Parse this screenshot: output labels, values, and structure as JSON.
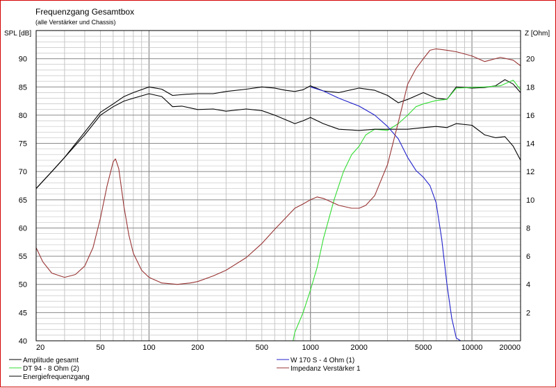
{
  "chart_data": {
    "type": "line",
    "title": "Frequenzgang Gesamtbox",
    "subtitle": "(alle Verstärker und Chassis)",
    "ylabel_left": "SPL [dB]",
    "ylabel_right": "Z [Ohm]",
    "x_scale": "log",
    "xlim": [
      20,
      20000
    ],
    "ylim_left": [
      40,
      95
    ],
    "ylim_right": [
      0,
      22
    ],
    "grid": true,
    "x_ticks": [
      {
        "v": 20,
        "label": "20"
      },
      {
        "v": 50,
        "label": "50"
      },
      {
        "v": 100,
        "label": "100"
      },
      {
        "v": 200,
        "label": "200"
      },
      {
        "v": 500,
        "label": "500"
      },
      {
        "v": 1000,
        "label": "1000"
      },
      {
        "v": 2000,
        "label": "2000"
      },
      {
        "v": 5000,
        "label": "5000"
      },
      {
        "v": 10000,
        "label": "10000"
      },
      {
        "v": 20000,
        "label": "20000"
      }
    ],
    "y_ticks_left": [
      {
        "v": 40,
        "label": "40"
      },
      {
        "v": 45,
        "label": "45"
      },
      {
        "v": 50,
        "label": "50"
      },
      {
        "v": 55,
        "label": "55"
      },
      {
        "v": 60,
        "label": "60"
      },
      {
        "v": 65,
        "label": "65"
      },
      {
        "v": 70,
        "label": "70"
      },
      {
        "v": 75,
        "label": "75"
      },
      {
        "v": 80,
        "label": "80"
      },
      {
        "v": 85,
        "label": "85"
      },
      {
        "v": 90,
        "label": "90"
      }
    ],
    "y_ticks_right": [
      {
        "v": 2,
        "label": "2"
      },
      {
        "v": 4,
        "label": "4"
      },
      {
        "v": 6,
        "label": "6"
      },
      {
        "v": 8,
        "label": "8"
      },
      {
        "v": 10,
        "label": "10"
      },
      {
        "v": 12,
        "label": "12"
      },
      {
        "v": 14,
        "label": "14"
      },
      {
        "v": 16,
        "label": "16"
      },
      {
        "v": 18,
        "label": "18"
      },
      {
        "v": 20,
        "label": "20"
      }
    ],
    "legend_position": "bottom",
    "series": [
      {
        "name": "Amplitude gesamt",
        "color": "#000000",
        "axis": "left",
        "x": [
          20,
          25,
          30,
          40,
          50,
          60,
          70,
          80,
          100,
          120,
          140,
          170,
          200,
          250,
          300,
          400,
          500,
          600,
          700,
          800,
          900,
          1000,
          1200,
          1500,
          2000,
          2500,
          3000,
          3500,
          4000,
          5000,
          6000,
          7000,
          8000,
          10000,
          12000,
          14000,
          16000,
          18000,
          20000
        ],
        "y": [
          67,
          70,
          72.5,
          77,
          80.5,
          82,
          83.3,
          84,
          85,
          84.6,
          83.5,
          83.7,
          83.8,
          83.8,
          84.2,
          84.6,
          85,
          84.8,
          84.4,
          84.2,
          84.5,
          85.2,
          84.3,
          84,
          84.8,
          84.4,
          83.5,
          82.2,
          82.8,
          84,
          83,
          82.8,
          85,
          84.8,
          84.9,
          85.2,
          86.3,
          85.5,
          84
        ]
      },
      {
        "name": "DT 94 - 8 Ohm (2)",
        "color": "#33dd33",
        "axis": "left",
        "x": [
          20,
          500,
          780,
          800,
          900,
          1000,
          1100,
          1200,
          1400,
          1600,
          1800,
          2000,
          2200,
          2500,
          3000,
          3500,
          4000,
          4500,
          5000,
          6000,
          7000,
          8000,
          10000,
          12000,
          15000,
          18000,
          20000
        ],
        "y": [
          40,
          40,
          40,
          41.5,
          45,
          49,
          53,
          58,
          65,
          70,
          73,
          74.5,
          76.5,
          77.5,
          77.3,
          78.5,
          80,
          81.5,
          82,
          82.6,
          82.8,
          84.8,
          84.9,
          85,
          85.2,
          86.2,
          84.5
        ]
      },
      {
        "name": "Energiefrequenzgang",
        "color": "#000000",
        "axis": "left",
        "x": [
          20,
          25,
          30,
          40,
          50,
          60,
          70,
          80,
          100,
          120,
          140,
          160,
          200,
          250,
          300,
          400,
          500,
          600,
          700,
          800,
          900,
          1000,
          1200,
          1500,
          2000,
          2500,
          3000,
          4000,
          5000,
          6000,
          7000,
          8000,
          10000,
          12000,
          14000,
          16000,
          18000,
          20000
        ],
        "y": [
          67,
          70,
          72.5,
          76.5,
          80,
          81.5,
          82.5,
          83,
          83.8,
          83.3,
          81.5,
          81.6,
          81,
          81.1,
          80.7,
          81.1,
          80.8,
          80,
          79.2,
          78.5,
          79,
          79.6,
          78.5,
          77.5,
          77.3,
          77.5,
          77.5,
          77.5,
          77.8,
          78,
          77.8,
          78.5,
          78.2,
          76.5,
          76,
          76.2,
          74.5,
          72
        ]
      },
      {
        "name": "W 170 S - 4 Ohm (1)",
        "color": "#2020cc",
        "axis": "left",
        "x": [
          1000,
          1200,
          1500,
          2000,
          2500,
          3000,
          3500,
          4000,
          4500,
          5000,
          5500,
          6000,
          6500,
          7000,
          7500,
          8000,
          8500
        ],
        "y": [
          85,
          84.3,
          83,
          81.6,
          80,
          78,
          75.8,
          72.5,
          70.2,
          69,
          67.5,
          64.5,
          58,
          50,
          44,
          40.5,
          40
        ]
      },
      {
        "name": "Impedanz Verstärker 1",
        "color": "#993333",
        "axis": "right",
        "x": [
          20,
          22,
          25,
          30,
          35,
          40,
          45,
          50,
          55,
          60,
          62,
          65,
          70,
          75,
          80,
          90,
          100,
          120,
          150,
          180,
          200,
          250,
          300,
          400,
          500,
          600,
          700,
          800,
          900,
          1000,
          1100,
          1200,
          1500,
          1800,
          2000,
          2200,
          2500,
          3000,
          3500,
          4000,
          4500,
          5000,
          5500,
          6000,
          7000,
          8000,
          10000,
          12000,
          15000,
          18000,
          20000
        ],
        "y": [
          6.6,
          5.6,
          4.8,
          4.5,
          4.7,
          5.3,
          6.6,
          8.7,
          11,
          12.7,
          12.9,
          12.2,
          9.5,
          7.5,
          6.2,
          5,
          4.5,
          4.1,
          4,
          4.1,
          4.2,
          4.6,
          5,
          5.9,
          6.9,
          7.9,
          8.7,
          9.4,
          9.7,
          10,
          10.2,
          10.1,
          9.6,
          9.4,
          9.4,
          9.6,
          10.3,
          12.5,
          15.5,
          18.2,
          19.3,
          20,
          20.6,
          20.7,
          20.6,
          20.5,
          20.2,
          19.8,
          20.1,
          19.9,
          19.5
        ]
      }
    ]
  },
  "legend_layout": [
    {
      "idx": 0,
      "col": 0,
      "row": 0
    },
    {
      "idx": 1,
      "col": 0,
      "row": 1
    },
    {
      "idx": 2,
      "col": 0,
      "row": 2
    },
    {
      "idx": 3,
      "col": 1,
      "row": 0
    },
    {
      "idx": 4,
      "col": 1,
      "row": 1
    }
  ]
}
